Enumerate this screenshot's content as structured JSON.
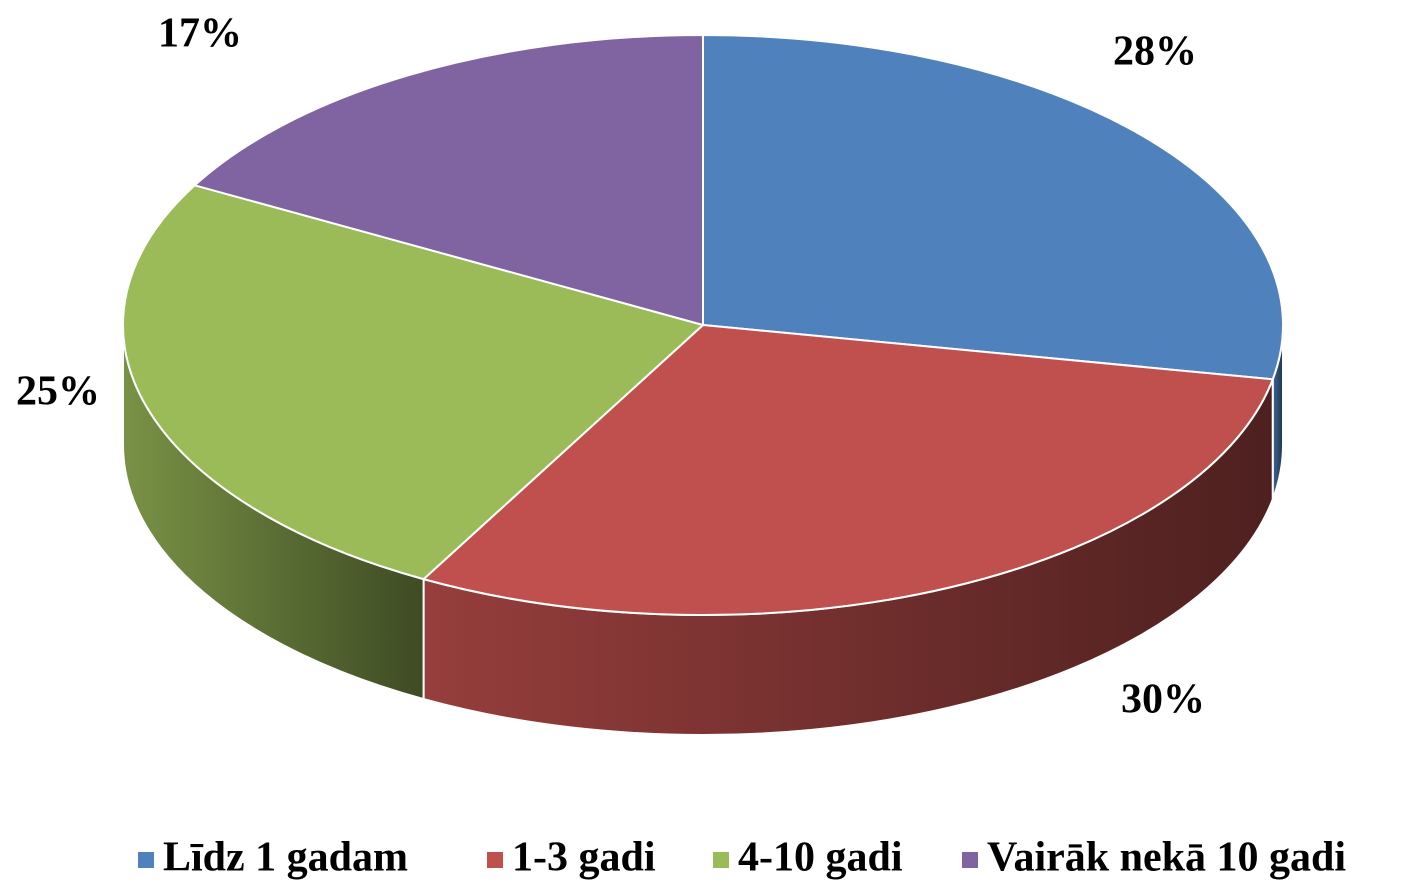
{
  "chart_data": {
    "type": "pie",
    "categories": [
      "Līdz 1 gadam",
      "1-3 gadi",
      "4-10 gadi",
      "Vairāk nekā 10 gadi"
    ],
    "values": [
      28,
      30,
      25,
      17
    ],
    "value_labels": [
      "28%",
      "30%",
      "25%",
      "17%"
    ],
    "colors": [
      "#4f81bd",
      "#c0504d",
      "#9bbb59",
      "#8064a2"
    ],
    "legend": "bottom"
  }
}
